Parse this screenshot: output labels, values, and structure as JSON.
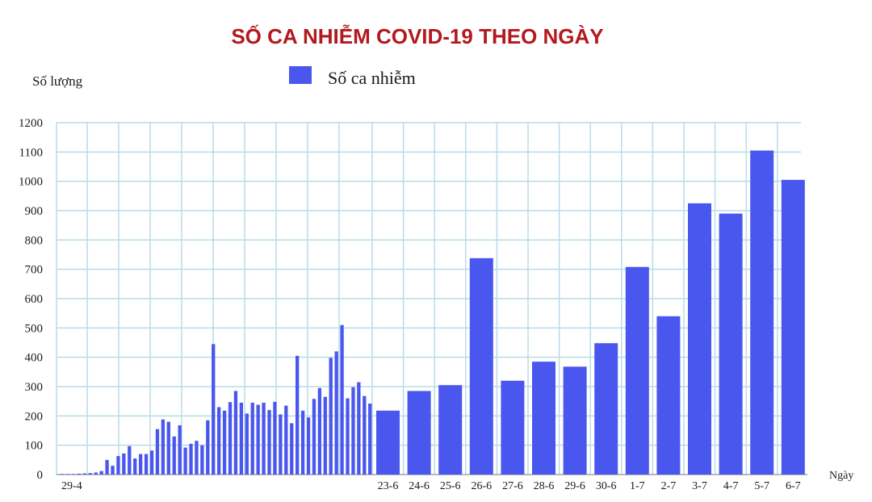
{
  "chart_data": {
    "type": "bar",
    "title": "SỐ CA NHIỄM COVID-19 THEO NGÀY",
    "ylabel": "Số lượng",
    "xlabel": "Ngày",
    "legend": {
      "position": "top",
      "entries": [
        "Số ca nhiễm"
      ]
    },
    "ylim": [
      0,
      1200
    ],
    "y_ticks": [
      0,
      100,
      200,
      300,
      400,
      500,
      600,
      700,
      800,
      900,
      1000,
      1100,
      1200
    ],
    "grid": true,
    "bar_color": "#4a57ee",
    "grid_color": "#b9dce8",
    "title_color": "#b3191f",
    "early_period": {
      "first_label": "29-4",
      "values": [
        2,
        2,
        2,
        3,
        4,
        5,
        7,
        12,
        50,
        30,
        63,
        72,
        97,
        55,
        70,
        70,
        82,
        155,
        188,
        180,
        130,
        168,
        92,
        105,
        115,
        100,
        185,
        445,
        230,
        218,
        247,
        285,
        245,
        208,
        245,
        238,
        245,
        220,
        248,
        205,
        235,
        175,
        405,
        218,
        195,
        258,
        295,
        265,
        398,
        420,
        510,
        260,
        298,
        315,
        268,
        242
      ]
    },
    "recent_period": {
      "categories": [
        "23-6",
        "24-6",
        "25-6",
        "26-6",
        "27-6",
        "28-6",
        "29-6",
        "30-6",
        "1-7",
        "2-7",
        "3-7",
        "4-7",
        "5-7",
        "6-7"
      ],
      "values": [
        218,
        285,
        305,
        738,
        320,
        385,
        368,
        448,
        708,
        540,
        925,
        890,
        1105,
        1005
      ]
    }
  }
}
